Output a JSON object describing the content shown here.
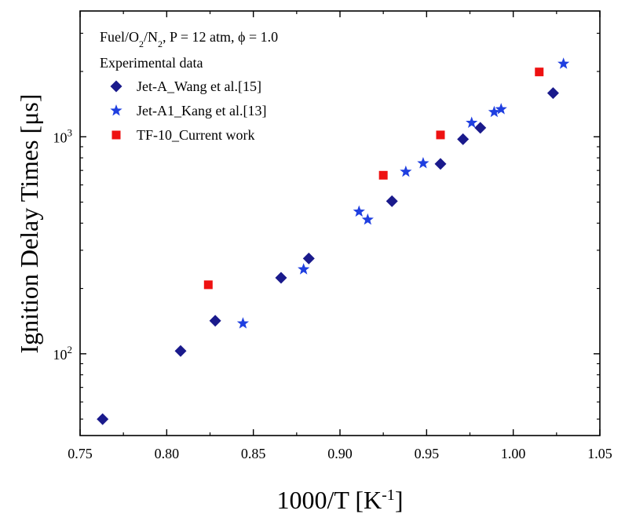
{
  "chart_data": {
    "type": "scatter",
    "x_axis": {
      "label_main": "1000/T [K",
      "label_sup": "-1",
      "label_end": "]",
      "range": [
        0.75,
        1.05
      ],
      "ticks": [
        "0.75",
        "0.80",
        "0.85",
        "0.90",
        "0.95",
        "1.00",
        "1.05"
      ]
    },
    "y_axis": {
      "label": "Ignition Delay Times [μs]",
      "scale": "log",
      "range": [
        42,
        3800
      ],
      "ticks": [
        {
          "value": 100,
          "base": "10",
          "exp": "2"
        },
        {
          "value": 1000,
          "base": "10",
          "exp": "3"
        }
      ]
    },
    "legend": {
      "position": "top-left",
      "conditions": {
        "p1": "Fuel/O",
        "s1": "2",
        "p2": "/N",
        "s2": "2",
        "p3": ", P = 12 atm, ϕ = 1.0"
      },
      "heading": "Experimental data"
    },
    "grid": false,
    "series": [
      {
        "name": "Jet-A_Wang et al.[15]",
        "marker": "diamond",
        "color": "#1a1a8c",
        "points": [
          [
            0.763,
            50
          ],
          [
            0.808,
            103
          ],
          [
            0.828,
            142
          ],
          [
            0.866,
            224
          ],
          [
            0.882,
            275
          ],
          [
            0.93,
            505
          ],
          [
            0.958,
            750
          ],
          [
            0.971,
            975
          ],
          [
            0.981,
            1100
          ],
          [
            1.023,
            1590
          ]
        ]
      },
      {
        "name": "Jet-A1_Kang et al.[13]",
        "marker": "star",
        "color": "#1f3fe0",
        "points": [
          [
            0.844,
            138
          ],
          [
            0.879,
            245
          ],
          [
            0.911,
            452
          ],
          [
            0.916,
            415
          ],
          [
            0.938,
            690
          ],
          [
            0.948,
            755
          ],
          [
            0.976,
            1160
          ],
          [
            0.989,
            1300
          ],
          [
            0.993,
            1340
          ],
          [
            1.029,
            2170
          ]
        ]
      },
      {
        "name": "TF-10_Current work",
        "marker": "square",
        "color": "#ee1111",
        "points": [
          [
            0.824,
            208
          ],
          [
            0.925,
            665
          ],
          [
            0.958,
            1020
          ],
          [
            1.015,
            1990
          ]
        ]
      }
    ]
  }
}
